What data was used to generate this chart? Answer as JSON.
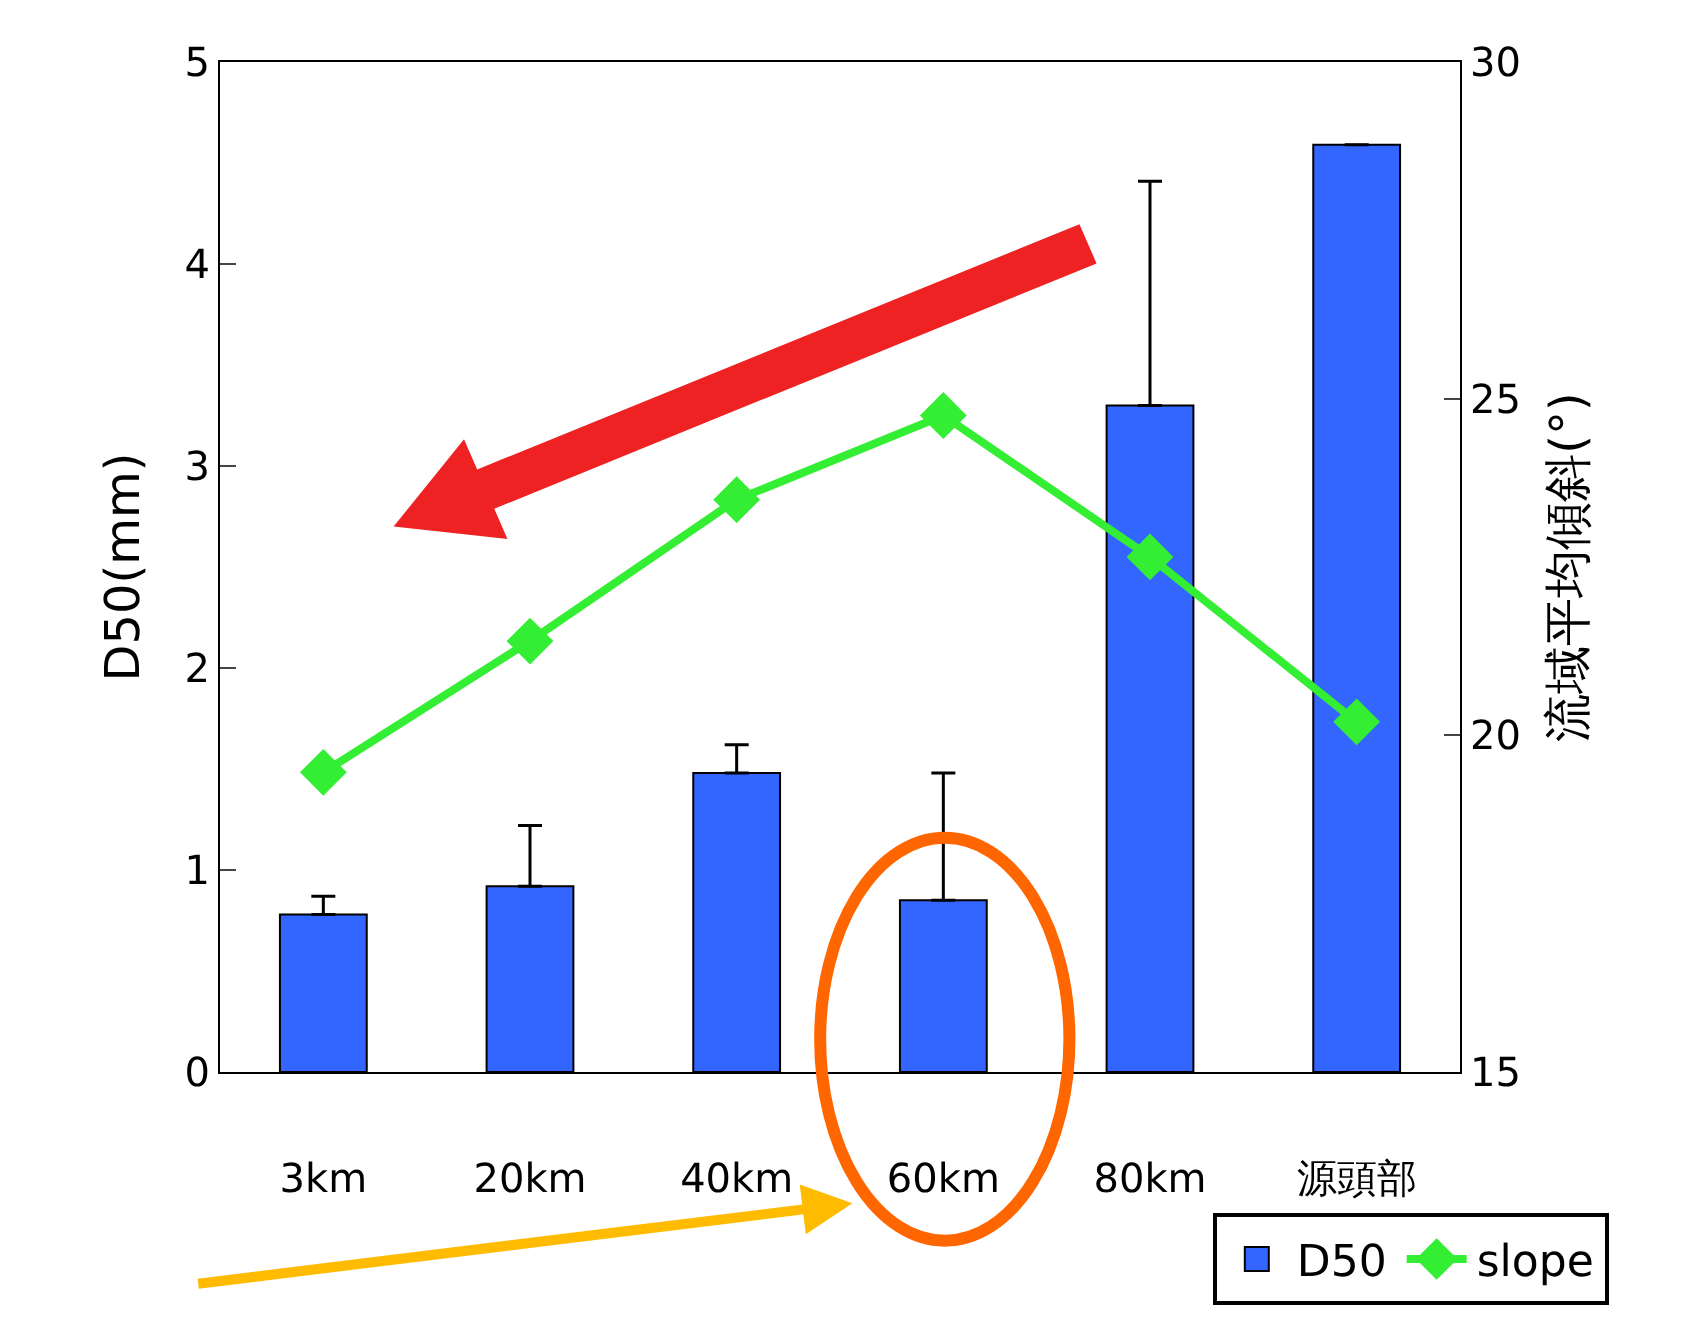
{
  "chart_data": {
    "type": "bar",
    "categories": [
      "3km",
      "20km",
      "40km",
      "60km",
      "80km",
      "源頭部"
    ],
    "ylabel": "D50(mm)",
    "y2label": "流域平均傾斜(°)",
    "ylim": [
      0,
      5
    ],
    "yticks": [
      0,
      1,
      2,
      3,
      4,
      5
    ],
    "y2lim": [
      15,
      30
    ],
    "y2ticks": [
      15,
      20,
      25,
      30
    ],
    "series": [
      {
        "name": "D50",
        "color": "#3366ff",
        "values": [
          0.78,
          0.92,
          1.48,
          0.85,
          3.3,
          4.59
        ],
        "errors": [
          [
            0.78,
            0.87
          ],
          [
            0.92,
            1.22
          ],
          [
            1.48,
            1.62
          ],
          [
            0.85,
            1.48
          ],
          [
            3.3,
            4.41
          ],
          null
        ]
      },
      {
        "name": "slope",
        "type": "line",
        "axis": "y2",
        "color": "#33ee33",
        "marker": "diamond",
        "values": [
          19.45,
          21.4,
          23.5,
          24.75,
          22.65,
          20.2
        ]
      }
    ],
    "legend": "bottom right"
  }
}
